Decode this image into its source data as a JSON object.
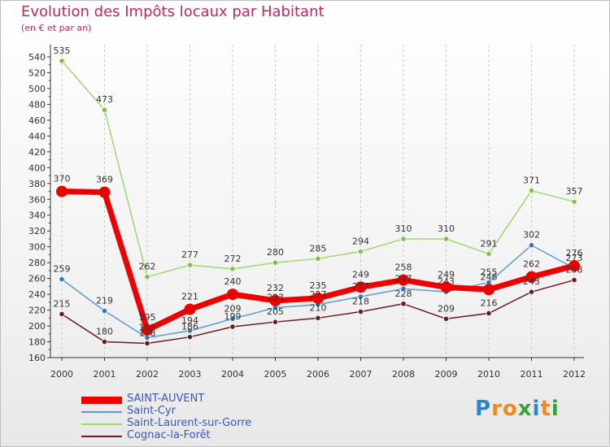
{
  "header": {
    "title": "Evolution des Impôts locaux par Habitant",
    "subtitle": "(en € et par an)"
  },
  "colors": {
    "title": "#c8245f",
    "legend_text": "#3a56c8",
    "axis": "#333333",
    "grid": "#c9c9c9"
  },
  "logo": {
    "letters": [
      "P",
      "r",
      "o",
      "x",
      "i",
      "t",
      "i"
    ],
    "colors": [
      "#2e86c8",
      "#f08a1c",
      "#f08a1c",
      "#39a03a",
      "#2e86c8",
      "#f08a1c",
      "#39a03a"
    ]
  },
  "chart_data": {
    "type": "line",
    "title": "Evolution des Impôts locaux par Habitant",
    "subtitle": "(en € et par an)",
    "xlabel": "",
    "ylabel": "",
    "x": [
      "2000",
      "2001",
      "2002",
      "2003",
      "2004",
      "2005",
      "2006",
      "2007",
      "2008",
      "2009",
      "2010",
      "2011",
      "2012"
    ],
    "ylim": [
      160,
      540
    ],
    "ytick_step": 20,
    "grid": "vertical dashed at each year",
    "legend_position": "bottom-left",
    "series": [
      {
        "name": "Cognac-la-Forêt",
        "color": "#6b1a22",
        "marker": "#6b1a22",
        "values": [
          215,
          180,
          178,
          186,
          199,
          205,
          210,
          218,
          228,
          209,
          216,
          243,
          258
        ],
        "labels": [
          "215",
          "180",
          "178",
          "186",
          "199",
          "205",
          "210",
          "218",
          "228",
          "209",
          "216",
          "243",
          "258"
        ]
      },
      {
        "name": "Saint-Cyr",
        "color": "#5e9bd6",
        "marker": "#2e78c0",
        "values": [
          259,
          219,
          185,
          194,
          209,
          223,
          227,
          237,
          247,
          243,
          255,
          302,
          273
        ],
        "labels": [
          "259",
          "219",
          "185",
          "194",
          "209",
          "223",
          "227",
          "237",
          "247",
          "243",
          "255",
          "302",
          "273"
        ]
      },
      {
        "name": "Saint-Laurent-sur-Gorre",
        "color": "#9fd86e",
        "marker": "#7cc342",
        "values": [
          535,
          473,
          262,
          277,
          272,
          280,
          285,
          294,
          310,
          310,
          291,
          371,
          357
        ],
        "labels": [
          "535",
          "473",
          "262",
          "277",
          "272",
          "280",
          "285",
          "294",
          "310",
          "310",
          "291",
          "371",
          "357"
        ]
      },
      {
        "name": "SAINT-AUVENT",
        "color": "#ee0000",
        "marker": "#ee0000",
        "values": [
          370,
          369,
          195,
          221,
          240,
          232,
          235,
          249,
          258,
          249,
          246,
          262,
          276
        ],
        "labels": [
          "370",
          "369",
          "195",
          "221",
          "240",
          "232",
          "235",
          "249",
          "258",
          "249",
          "246",
          "262",
          "276"
        ]
      }
    ],
    "legend": [
      "SAINT-AUVENT",
      "Saint-Cyr",
      "Saint-Laurent-sur-Gorre",
      "Cognac-la-Forêt"
    ]
  }
}
